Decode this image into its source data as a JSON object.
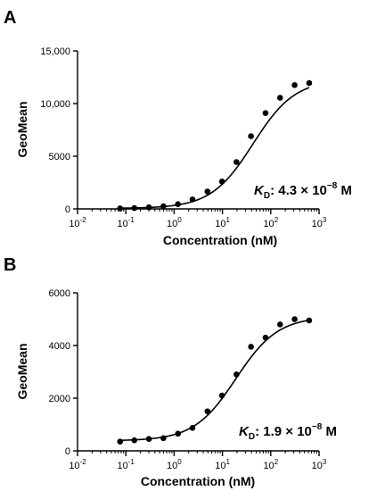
{
  "chart_data": [
    {
      "type": "scatter",
      "panel": "A",
      "xlabel": "Concentration (nM)",
      "ylabel": "GeoMean",
      "x_scale": "log",
      "xlim": [
        0.01,
        1000
      ],
      "ylim": [
        0,
        15000
      ],
      "x_tick_bases": [
        "10",
        "10",
        "10",
        "10",
        "10",
        "10"
      ],
      "x_tick_exponents": [
        "-2",
        "-1",
        "0",
        "1",
        "2",
        "3"
      ],
      "y_ticks": [
        0,
        5000,
        10000,
        15000
      ],
      "y_tick_labels": [
        "0",
        "5000",
        "10,000",
        "15,000"
      ],
      "x": [
        0.076,
        0.15,
        0.3,
        0.6,
        1.2,
        2.4,
        4.9,
        9.8,
        19.5,
        39,
        78,
        156,
        312,
        625
      ],
      "y": [
        50,
        80,
        150,
        250,
        450,
        900,
        1650,
        2600,
        4450,
        6900,
        9100,
        10550,
        11750,
        11950
      ],
      "fit": {
        "bottom": 50,
        "top": 12300,
        "ec50": 43,
        "hill": 1
      },
      "kd": {
        "symbol": "K",
        "subscript": "D",
        "mantissa": ": 4.3 × 10",
        "exponent": "−8",
        "unit": " M"
      }
    },
    {
      "type": "scatter",
      "panel": "B",
      "xlabel": "Concentration (nM)",
      "ylabel": "GeoMean",
      "x_scale": "log",
      "xlim": [
        0.01,
        1000
      ],
      "ylim": [
        0,
        6000
      ],
      "x_tick_bases": [
        "10",
        "10",
        "10",
        "10",
        "10",
        "10"
      ],
      "x_tick_exponents": [
        "-2",
        "-1",
        "0",
        "1",
        "2",
        "3"
      ],
      "y_ticks": [
        0,
        2000,
        4000,
        6000
      ],
      "y_tick_labels": [
        "0",
        "2000",
        "4000",
        "6000"
      ],
      "x": [
        0.076,
        0.15,
        0.3,
        0.6,
        1.2,
        2.4,
        4.9,
        9.8,
        19.5,
        39,
        78,
        156,
        312,
        625
      ],
      "y": [
        350,
        400,
        450,
        480,
        650,
        870,
        1500,
        2100,
        2900,
        3950,
        4300,
        4800,
        5000,
        4950
      ],
      "fit": {
        "bottom": 380,
        "top": 5100,
        "ec50": 19,
        "hill": 1
      },
      "kd": {
        "symbol": "K",
        "subscript": "D",
        "mantissa": ": 1.9 × 10",
        "exponent": "−8",
        "unit": " M"
      }
    }
  ],
  "panels": [
    "A",
    "B"
  ]
}
